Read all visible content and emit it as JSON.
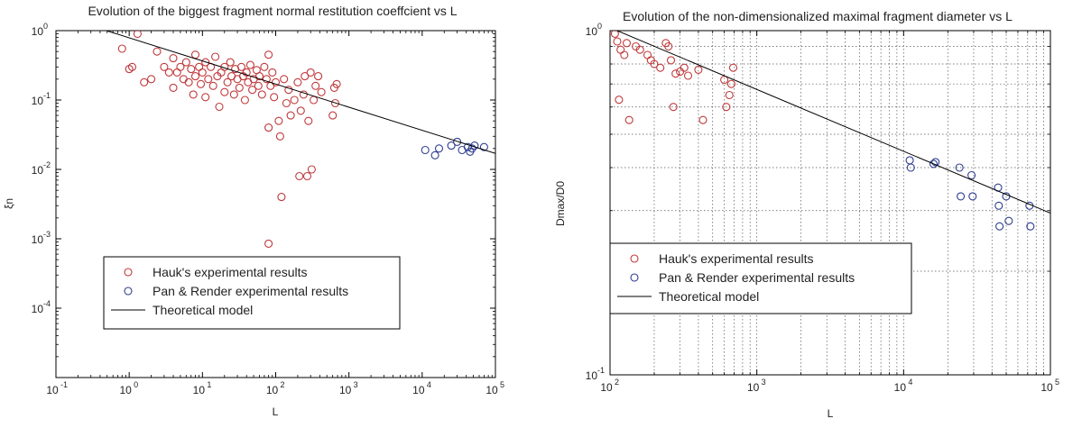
{
  "chart_data": [
    {
      "type": "scatter",
      "title": "Evolution of the biggest fragment normal restitution coeffcient vs L",
      "xlabel": "L",
      "ylabel": "ξn",
      "xscale": "log",
      "yscale": "log",
      "xlim": [
        0.1,
        100000
      ],
      "ylim": [
        1e-05,
        1
      ],
      "grid": false,
      "legend_position": "bottom-center",
      "x_ticks": [
        {
          "v": 0.1,
          "base": "10",
          "exp": "-1"
        },
        {
          "v": 1,
          "base": "10",
          "exp": "0"
        },
        {
          "v": 10,
          "base": "10",
          "exp": "1"
        },
        {
          "v": 100,
          "base": "10",
          "exp": "2"
        },
        {
          "v": 1000,
          "base": "10",
          "exp": "3"
        },
        {
          "v": 10000,
          "base": "10",
          "exp": "4"
        },
        {
          "v": 100000,
          "base": "10",
          "exp": "5"
        }
      ],
      "y_ticks": [
        {
          "v": 0.0001,
          "base": "10",
          "exp": "-4"
        },
        {
          "v": 0.001,
          "base": "10",
          "exp": "-3"
        },
        {
          "v": 0.01,
          "base": "10",
          "exp": "-2"
        },
        {
          "v": 0.1,
          "base": "10",
          "exp": "-1"
        },
        {
          "v": 1,
          "base": "10",
          "exp": "0"
        }
      ],
      "series": [
        {
          "name": "Hauk's experimental results",
          "kind": "markers",
          "color": "#c0393b",
          "points": [
            [
              0.8,
              0.55
            ],
            [
              1,
              0.28
            ],
            [
              1.1,
              0.3
            ],
            [
              1.3,
              0.9
            ],
            [
              1.6,
              0.18
            ],
            [
              2,
              0.2
            ],
            [
              2.4,
              0.5
            ],
            [
              3,
              0.3
            ],
            [
              3.5,
              0.25
            ],
            [
              4,
              0.4
            ],
            [
              4,
              0.15
            ],
            [
              4.5,
              0.25
            ],
            [
              5,
              0.3
            ],
            [
              5.5,
              0.2
            ],
            [
              6,
              0.35
            ],
            [
              6.5,
              0.18
            ],
            [
              7,
              0.28
            ],
            [
              7.5,
              0.12
            ],
            [
              8,
              0.45
            ],
            [
              8,
              0.22
            ],
            [
              9,
              0.3
            ],
            [
              9.5,
              0.17
            ],
            [
              10,
              0.25
            ],
            [
              11,
              0.35
            ],
            [
              11,
              0.11
            ],
            [
              12,
              0.2
            ],
            [
              13,
              0.3
            ],
            [
              14,
              0.16
            ],
            [
              15,
              0.42
            ],
            [
              16,
              0.22
            ],
            [
              17,
              0.08
            ],
            [
              18,
              0.25
            ],
            [
              20,
              0.3
            ],
            [
              20,
              0.13
            ],
            [
              22,
              0.18
            ],
            [
              24,
              0.35
            ],
            [
              25,
              0.22
            ],
            [
              27,
              0.12
            ],
            [
              28,
              0.28
            ],
            [
              30,
              0.2
            ],
            [
              32,
              0.15
            ],
            [
              34,
              0.3
            ],
            [
              36,
              0.22
            ],
            [
              38,
              0.1
            ],
            [
              40,
              0.25
            ],
            [
              42,
              0.18
            ],
            [
              45,
              0.32
            ],
            [
              48,
              0.14
            ],
            [
              50,
              0.2
            ],
            [
              55,
              0.27
            ],
            [
              58,
              0.16
            ],
            [
              60,
              0.22
            ],
            [
              65,
              0.12
            ],
            [
              70,
              0.3
            ],
            [
              75,
              0.2
            ],
            [
              80,
              0.45
            ],
            [
              80,
              0.04
            ],
            [
              85,
              0.16
            ],
            [
              90,
              0.25
            ],
            [
              95,
              0.11
            ],
            [
              100,
              0.18
            ],
            [
              110,
              0.05
            ],
            [
              115,
              0.03
            ],
            [
              120,
              0.004
            ],
            [
              130,
              0.2
            ],
            [
              140,
              0.09
            ],
            [
              150,
              0.14
            ],
            [
              160,
              0.06
            ],
            [
              180,
              0.1
            ],
            [
              200,
              0.18
            ],
            [
              210,
              0.008
            ],
            [
              220,
              0.07
            ],
            [
              240,
              0.12
            ],
            [
              250,
              0.22
            ],
            [
              270,
              0.008
            ],
            [
              280,
              0.05
            ],
            [
              300,
              0.25
            ],
            [
              310,
              0.01
            ],
            [
              330,
              0.1
            ],
            [
              350,
              0.16
            ],
            [
              380,
              0.22
            ],
            [
              420,
              0.13
            ],
            [
              600,
              0.06
            ],
            [
              630,
              0.15
            ],
            [
              650,
              0.09
            ],
            [
              680,
              0.17
            ]
          ]
        },
        {
          "name": "Pan & Render experimental results",
          "kind": "markers",
          "color": "#2e3d8f",
          "points": [
            [
              11000,
              0.019
            ],
            [
              15000,
              0.016
            ],
            [
              17000,
              0.02
            ],
            [
              25000,
              0.022
            ],
            [
              30000,
              0.025
            ],
            [
              35000,
              0.019
            ],
            [
              42000,
              0.021
            ],
            [
              45000,
              0.018
            ],
            [
              48000,
              0.02
            ],
            [
              52000,
              0.022
            ],
            [
              70000,
              0.021
            ]
          ]
        },
        {
          "name": "Theoretical model",
          "kind": "line",
          "color": "#000000",
          "points": [
            [
              0.1,
              1.7
            ],
            [
              100000,
              0.017
            ]
          ]
        },
        {
          "name": "",
          "kind": "markers",
          "color": "#c0393b",
          "points": [
            [
              80,
              0.00085
            ]
          ]
        }
      ]
    },
    {
      "type": "scatter",
      "title": "Evolution of the non-dimensionalized maximal fragment diameter vs L",
      "xlabel": "L",
      "ylabel": "Dmax/D0",
      "xscale": "log",
      "yscale": "log",
      "xlim": [
        100,
        100000
      ],
      "ylim": [
        0.1,
        1
      ],
      "grid": true,
      "legend_position": "bottom-left",
      "x_ticks": [
        {
          "v": 100,
          "base": "10",
          "exp": "2"
        },
        {
          "v": 1000,
          "base": "10",
          "exp": "3"
        },
        {
          "v": 10000,
          "base": "10",
          "exp": "4"
        },
        {
          "v": 100000,
          "base": "10",
          "exp": "5"
        }
      ],
      "y_ticks": [
        {
          "v": 0.1,
          "base": "10",
          "exp": "-1"
        },
        {
          "v": 1,
          "base": "10",
          "exp": "0"
        }
      ],
      "series": [
        {
          "name": "Hauk's experimental results",
          "kind": "markers",
          "color": "#c0393b",
          "points": [
            [
              108,
              0.98
            ],
            [
              112,
              0.93
            ],
            [
              115,
              0.63
            ],
            [
              118,
              0.88
            ],
            [
              125,
              0.85
            ],
            [
              130,
              0.92
            ],
            [
              135,
              0.55
            ],
            [
              150,
              0.9
            ],
            [
              160,
              0.88
            ],
            [
              180,
              0.85
            ],
            [
              190,
              0.82
            ],
            [
              200,
              0.8
            ],
            [
              220,
              0.78
            ],
            [
              240,
              0.92
            ],
            [
              250,
              0.9
            ],
            [
              260,
              0.82
            ],
            [
              270,
              0.6
            ],
            [
              280,
              0.75
            ],
            [
              300,
              0.76
            ],
            [
              320,
              0.78
            ],
            [
              340,
              0.74
            ],
            [
              400,
              0.77
            ],
            [
              430,
              0.55
            ],
            [
              600,
              0.72
            ],
            [
              620,
              0.6
            ],
            [
              650,
              0.65
            ],
            [
              670,
              0.7
            ],
            [
              690,
              0.78
            ]
          ]
        },
        {
          "name": "Pan & Render experimental results",
          "kind": "markers",
          "color": "#2e3d8f",
          "points": [
            [
              11000,
              0.42
            ],
            [
              11200,
              0.4
            ],
            [
              16000,
              0.41
            ],
            [
              16500,
              0.415
            ],
            [
              24000,
              0.4
            ],
            [
              24500,
              0.33
            ],
            [
              29000,
              0.38
            ],
            [
              29500,
              0.33
            ],
            [
              44000,
              0.35
            ],
            [
              44500,
              0.31
            ],
            [
              45000,
              0.27
            ],
            [
              50000,
              0.33
            ],
            [
              52000,
              0.28
            ],
            [
              72000,
              0.31
            ],
            [
              73000,
              0.27
            ]
          ]
        },
        {
          "name": "Theoretical model",
          "kind": "line",
          "color": "#000000",
          "points": [
            [
              100,
              1.02
            ],
            [
              100000,
              0.295
            ]
          ]
        }
      ]
    }
  ]
}
